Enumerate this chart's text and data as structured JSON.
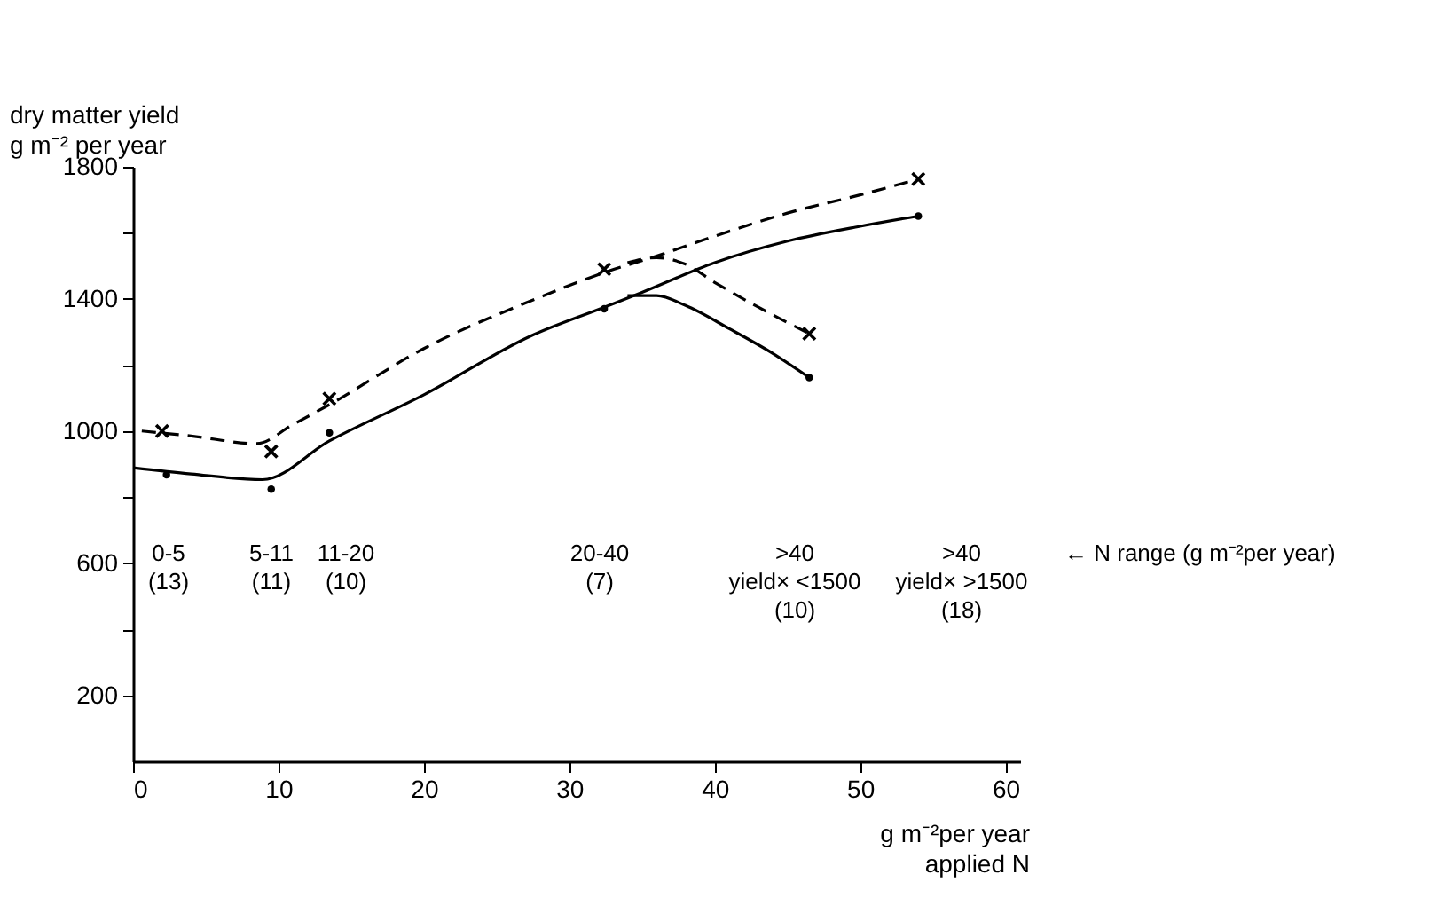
{
  "chart_data": {
    "type": "line",
    "xlabel": "g m⁻²per year\napplied N",
    "ylabel": "dry matter yield\ng m⁻² per year",
    "xlim": [
      0,
      61
    ],
    "xticks": [
      0,
      10,
      20,
      30,
      40,
      50,
      60
    ],
    "ylim": [
      0,
      1800
    ],
    "yticks": [
      {
        "value": 200,
        "label": "200"
      },
      {
        "value": 400,
        "label": null
      },
      {
        "value": 600,
        "label": "600"
      },
      {
        "value": 800,
        "label": null
      },
      {
        "value": 1000,
        "label": "1000"
      },
      {
        "value": 1200,
        "label": null
      },
      {
        "value": 1400,
        "label": "1400"
      },
      {
        "value": 1600,
        "label": null
      },
      {
        "value": 1800,
        "label": "1800"
      }
    ],
    "grid": false,
    "series": [
      {
        "type": "scatter",
        "marker": "cross",
        "color": "#000000",
        "x": [
          2,
          9.5,
          13.5,
          32.4,
          46.5,
          54
        ],
        "values": [
          1000,
          938,
          1098,
          1490,
          1295,
          1763
        ]
      },
      {
        "type": "scatter",
        "marker": "circle",
        "color": "#000000",
        "x": [
          2.3,
          9.5,
          13.5,
          32.4,
          46.5,
          54
        ],
        "values": [
          868,
          824,
          995,
          1370,
          1162,
          1651
        ]
      },
      {
        "type": "line",
        "line_style": "dashed",
        "marker": "none",
        "color": "#000000",
        "x": [
          0.6,
          4,
          8.5,
          11,
          13.5,
          20,
          27.4,
          32.4,
          36,
          40,
          45,
          50,
          54
        ],
        "values": [
          1000,
          985,
          962,
          1020,
          1080,
          1250,
          1395,
          1480,
          1530,
          1590,
          1660,
          1715,
          1763
        ]
      },
      {
        "type": "line",
        "line_style": "dashed",
        "marker": "none",
        "color": "#000000",
        "x": [
          34,
          36,
          38,
          40,
          43,
          46.5
        ],
        "values": [
          1510,
          1525,
          1505,
          1450,
          1375,
          1295
        ]
      },
      {
        "type": "line",
        "line_style": "solid",
        "marker": "none",
        "color": "#000000",
        "x": [
          0,
          4,
          8.9,
          13.5,
          20,
          27.4,
          32.4,
          35,
          40,
          45,
          50,
          54
        ],
        "values": [
          889,
          870,
          853,
          970,
          1110,
          1289,
          1375,
          1420,
          1510,
          1575,
          1620,
          1651
        ]
      },
      {
        "type": "line",
        "line_style": "solid",
        "marker": "none",
        "color": "#000000",
        "x": [
          34,
          36,
          38,
          41,
          44,
          46.5
        ],
        "values": [
          1410,
          1410,
          1380,
          1310,
          1235,
          1162
        ]
      }
    ],
    "annotations": [
      "0-5\n(13)",
      "5-11\n(11)",
      "11-20\n(10)",
      "20-40\n(7)",
      ">40\nyield× <1500\n(10)",
      ">40\nyield× >1500\n(18)",
      "← N range (g m⁻²per year)"
    ]
  }
}
